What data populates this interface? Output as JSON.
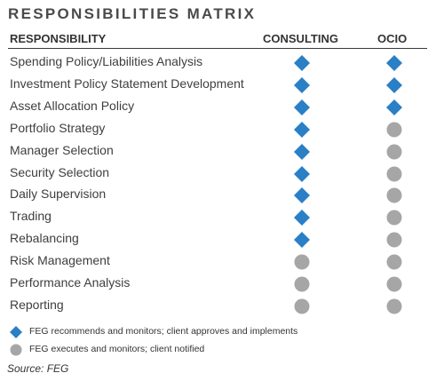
{
  "title": "RESPONSIBILITIES MATRIX",
  "headers": {
    "responsibility": "RESPONSIBILITY",
    "consulting": "CONSULTING",
    "ocio": "OCIO"
  },
  "colors": {
    "diamond": "#2a7fc6",
    "circle": "#a6a6a6"
  },
  "rows": [
    {
      "label": "Spending Policy/Liabilities Analysis",
      "consulting": "diamond",
      "ocio": "diamond"
    },
    {
      "label": "Investment Policy Statement Development",
      "consulting": "diamond",
      "ocio": "diamond"
    },
    {
      "label": "Asset Allocation Policy",
      "consulting": "diamond",
      "ocio": "diamond"
    },
    {
      "label": "Portfolio Strategy",
      "consulting": "diamond",
      "ocio": "circle"
    },
    {
      "label": "Manager Selection",
      "consulting": "diamond",
      "ocio": "circle"
    },
    {
      "label": "Security Selection",
      "consulting": "diamond",
      "ocio": "circle"
    },
    {
      "label": "Daily Supervision",
      "consulting": "diamond",
      "ocio": "circle"
    },
    {
      "label": "Trading",
      "consulting": "diamond",
      "ocio": "circle"
    },
    {
      "label": "Rebalancing",
      "consulting": "diamond",
      "ocio": "circle"
    },
    {
      "label": "Risk Management",
      "consulting": "circle",
      "ocio": "circle"
    },
    {
      "label": "Performance Analysis",
      "consulting": "circle",
      "ocio": "circle"
    },
    {
      "label": "Reporting",
      "consulting": "circle",
      "ocio": "circle"
    }
  ],
  "legend": [
    {
      "icon": "diamond",
      "text": "FEG recommends and monitors; client approves and implements"
    },
    {
      "icon": "circle",
      "text": "FEG executes and monitors; client notified"
    }
  ],
  "source": "Source: FEG"
}
